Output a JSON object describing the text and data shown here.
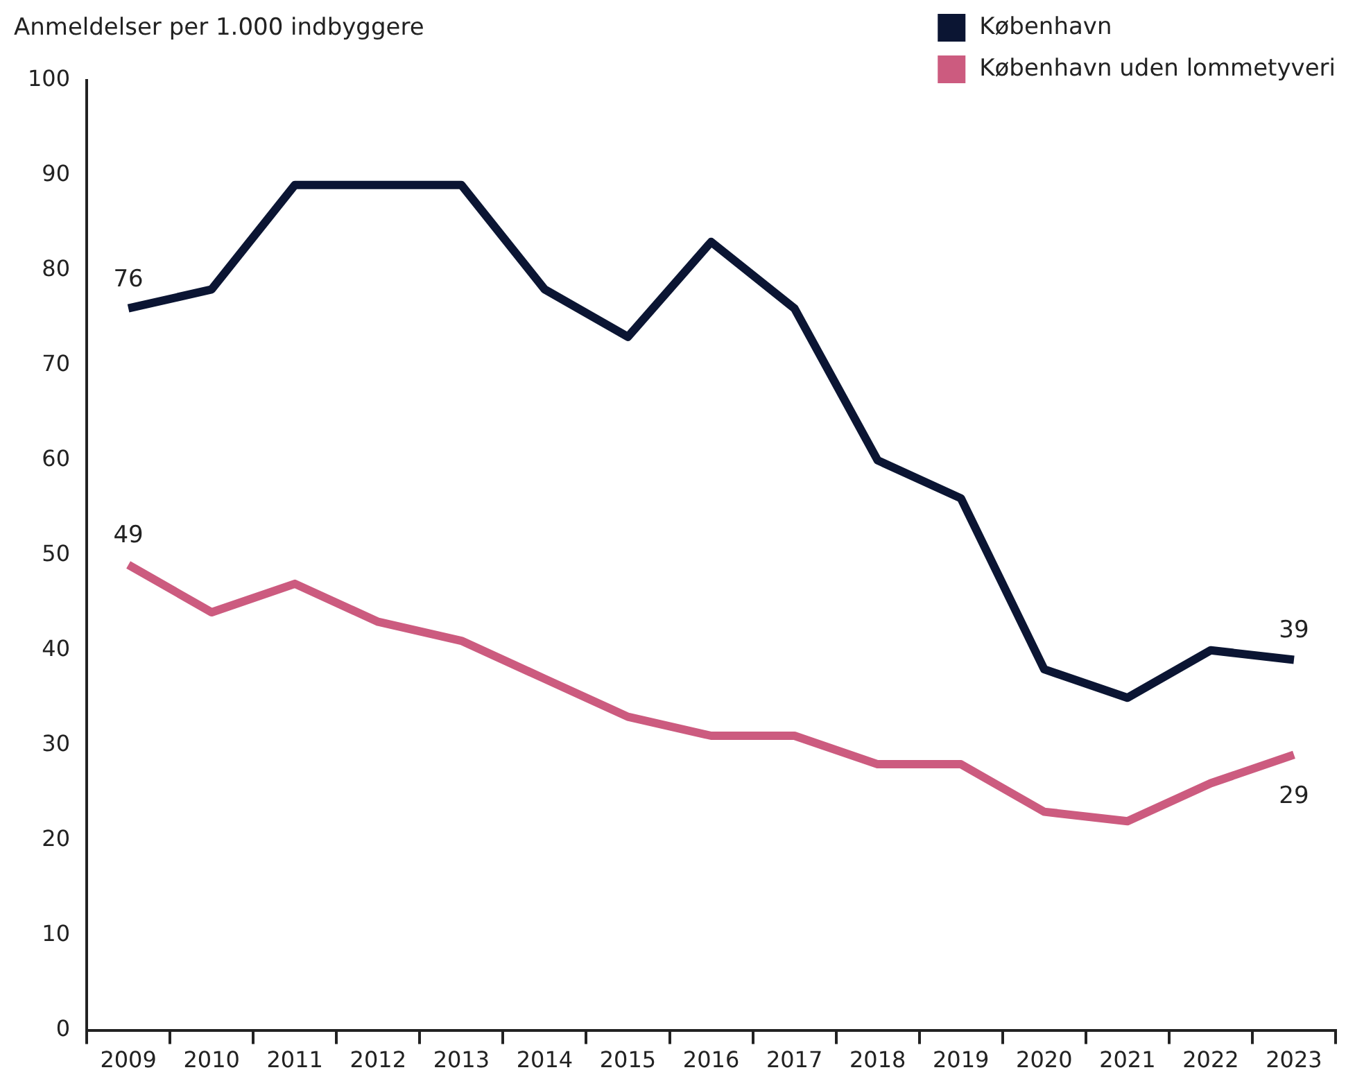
{
  "chart_data": {
    "type": "line",
    "ylabel": "Anmeldelser per 1.000 indbyggere",
    "categories": [
      "2009",
      "2010",
      "2011",
      "2012",
      "2013",
      "2014",
      "2015",
      "2016",
      "2017",
      "2018",
      "2019",
      "2020",
      "2021",
      "2022",
      "2023"
    ],
    "series": [
      {
        "name": "København",
        "color": "#0b1533",
        "values": [
          76,
          78,
          89,
          89,
          89,
          78,
          73,
          83,
          76,
          60,
          56,
          38,
          35,
          40,
          39
        ],
        "value_labels": [
          "76",
          null,
          null,
          null,
          null,
          null,
          null,
          null,
          null,
          null,
          null,
          null,
          null,
          null,
          "39"
        ]
      },
      {
        "name": "København uden lommetyveri",
        "color": "#cc5b7f",
        "values": [
          49,
          44,
          47,
          43,
          41,
          37,
          33,
          31,
          31,
          28,
          28,
          23,
          22,
          26,
          29
        ],
        "value_labels": [
          "49",
          null,
          null,
          null,
          null,
          null,
          null,
          null,
          null,
          null,
          null,
          null,
          null,
          null,
          "29"
        ]
      }
    ],
    "ylim": [
      0,
      100
    ],
    "yticks": [
      0,
      10,
      20,
      30,
      40,
      50,
      60,
      70,
      80,
      90,
      100
    ],
    "grid": false,
    "legend": "top right",
    "marker": "none",
    "line_style": "solid"
  }
}
